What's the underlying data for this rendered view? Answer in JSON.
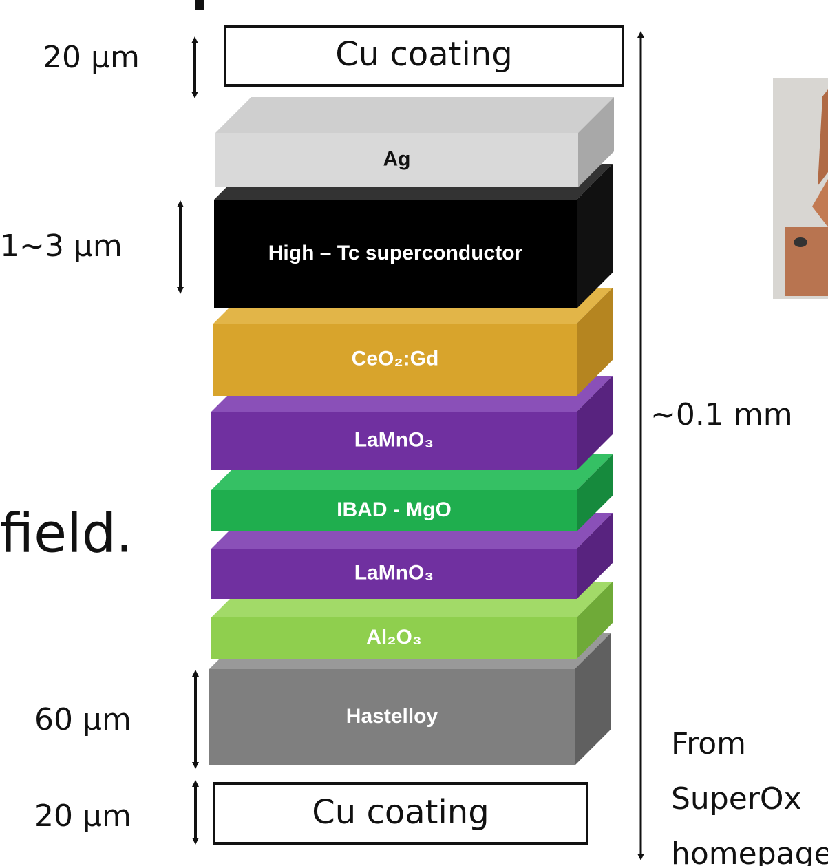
{
  "left_text": "field.",
  "top_coating": {
    "label": "Cu coating",
    "thickness": "20 μm"
  },
  "bottom_coating": {
    "label": "Cu coating",
    "thickness": "20 μm"
  },
  "layers": [
    {
      "label": "Ag"
    },
    {
      "label": "High – Tc superconductor",
      "thickness": "1~3 μm"
    },
    {
      "label": "CeO₂:Gd"
    },
    {
      "label": "LaMnO₃"
    },
    {
      "label": "IBAD - MgO"
    },
    {
      "label": "LaMnO₃"
    },
    {
      "label": "Al₂O₃"
    },
    {
      "label": "Hastelloy",
      "thickness": "60 μm"
    }
  ],
  "total_thickness": "~0.1 mm",
  "source_note": [
    "From",
    "SuperOx",
    "homepage"
  ]
}
